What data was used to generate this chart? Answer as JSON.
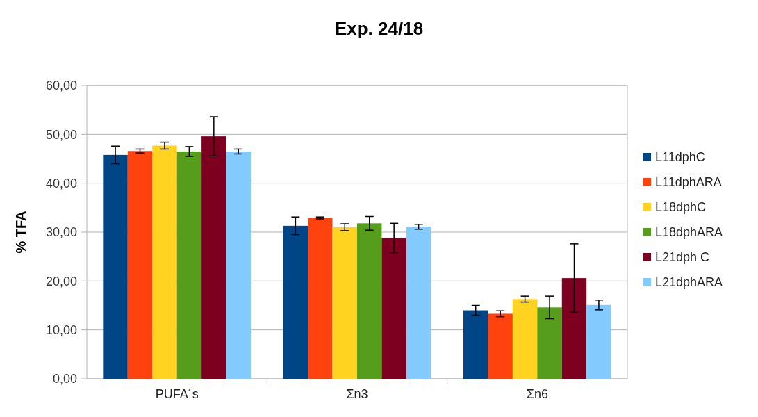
{
  "chart_data": {
    "type": "bar",
    "title": "Exp. 24/18",
    "ylabel": "% TFA",
    "categories": [
      "PUFA´s",
      "Σn3",
      "Σn6"
    ],
    "series": [
      {
        "name": "L11dphC",
        "color": "#004586",
        "values": [
          45.8,
          31.3,
          14.0
        ],
        "errors": [
          1.8,
          1.8,
          1.0
        ]
      },
      {
        "name": "L11dphARA",
        "color": "#ff420e",
        "values": [
          46.6,
          32.9,
          13.3
        ],
        "errors": [
          0.4,
          0.2,
          0.6
        ]
      },
      {
        "name": "L18dphC",
        "color": "#ffd320",
        "values": [
          47.7,
          31.0,
          16.3
        ],
        "errors": [
          0.7,
          0.7,
          0.6
        ]
      },
      {
        "name": "L18dphARA",
        "color": "#579d1c",
        "values": [
          46.5,
          31.8,
          14.6
        ],
        "errors": [
          1.0,
          1.4,
          2.3
        ]
      },
      {
        "name": "L21dph C",
        "color": "#7e0021",
        "values": [
          49.6,
          28.8,
          20.6
        ],
        "errors": [
          4.0,
          3.0,
          7.0
        ]
      },
      {
        "name": "L21dphARA",
        "color": "#83caff",
        "values": [
          46.5,
          31.1,
          15.1
        ],
        "errors": [
          0.5,
          0.5,
          1.0
        ]
      }
    ],
    "ylim": [
      0,
      60
    ],
    "yticks": [
      {
        "value": 0,
        "label": "0,00"
      },
      {
        "value": 10,
        "label": "10,00"
      },
      {
        "value": 20,
        "label": "20,00"
      },
      {
        "value": 30,
        "label": "30,00"
      },
      {
        "value": 40,
        "label": "40,00"
      },
      {
        "value": 50,
        "label": "50,00"
      },
      {
        "value": 60,
        "label": "60,00"
      }
    ],
    "grid": "y",
    "legend": "right"
  }
}
